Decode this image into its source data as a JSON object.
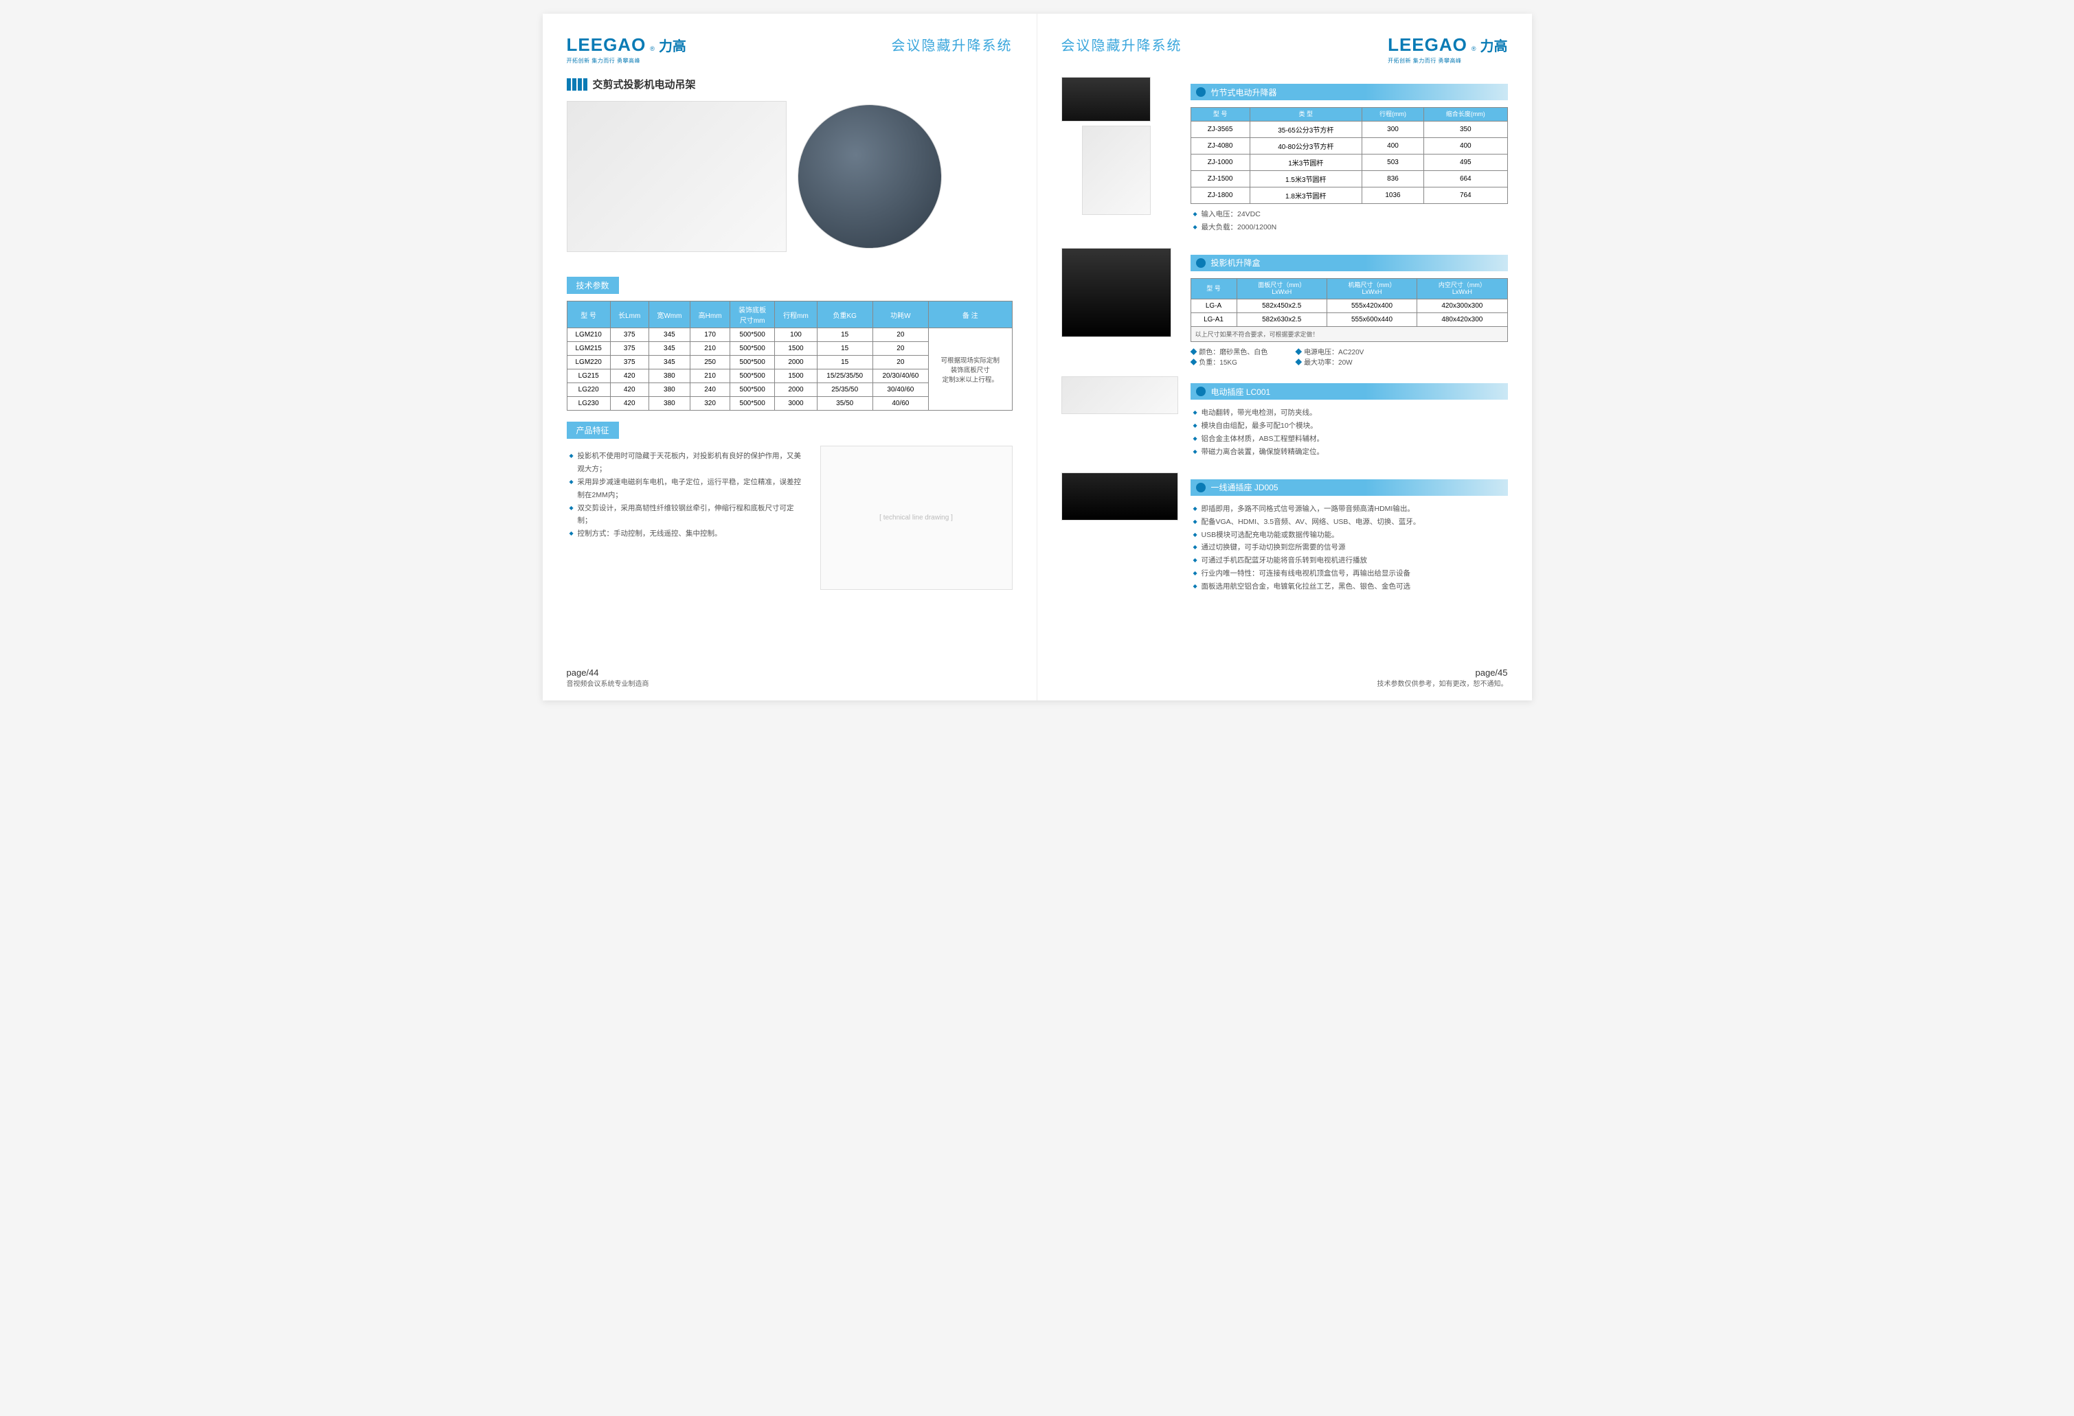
{
  "brand": {
    "en": "LEEGAO",
    "cn": "力高",
    "r": "®",
    "tagline": "开拓创新 集力而行 勇攀高峰"
  },
  "left": {
    "title": "会议隐藏升降系统",
    "section1": "交剪式投影机电动吊架",
    "specs_header": "技术参数",
    "table": {
      "columns": [
        "型 号",
        "长Lmm",
        "宽Wmm",
        "高Hmm",
        "装饰底板\n尺寸mm",
        "行程mm",
        "负重KG",
        "功耗W",
        "备  注"
      ],
      "rows": [
        [
          "LGM210",
          "375",
          "345",
          "170",
          "500*500",
          "100",
          "15",
          "20"
        ],
        [
          "LGM215",
          "375",
          "345",
          "210",
          "500*500",
          "1500",
          "15",
          "20"
        ],
        [
          "LGM220",
          "375",
          "345",
          "250",
          "500*500",
          "2000",
          "15",
          "20"
        ],
        [
          "LG215",
          "420",
          "380",
          "210",
          "500*500",
          "1500",
          "15/25/35/50",
          "20/30/40/60"
        ],
        [
          "LG220",
          "420",
          "380",
          "240",
          "500*500",
          "2000",
          "25/35/50",
          "30/40/60"
        ],
        [
          "LG230",
          "420",
          "380",
          "320",
          "500*500",
          "3000",
          "35/50",
          "40/60"
        ]
      ],
      "note": "可根据现场实际定制\n装饰底板尺寸\n定制3米以上行程。"
    },
    "features_header": "产品特征",
    "features": [
      "投影机不使用时可隐藏于天花板内，对投影机有良好的保护作用，又美观大方；",
      "采用异步减速电磁刹车电机，电子定位，运行平稳，定位精准，误差控制在2MM内；",
      "双交剪设计，采用高韧性纤维铰钢丝牵引，伸缩行程和底板尺寸可定制；",
      "控制方式：手动控制，无线遥控、集中控制。"
    ],
    "page": "page/44",
    "footer_sub": "音视频会议系统专业制造商"
  },
  "right": {
    "title": "会议隐藏升降系统",
    "s1": {
      "header": "竹节式电动升降器",
      "table": {
        "columns": [
          "型 号",
          "类  型",
          "行程(mm)",
          "缩合长度(mm)"
        ],
        "rows": [
          [
            "ZJ-3565",
            "35-65公分3节方杆",
            "300",
            "350"
          ],
          [
            "ZJ-4080",
            "40-80公分3节方杆",
            "400",
            "400"
          ],
          [
            "ZJ-1000",
            "1米3节圆杆",
            "503",
            "495"
          ],
          [
            "ZJ-1500",
            "1.5米3节圆杆",
            "836",
            "664"
          ],
          [
            "ZJ-1800",
            "1.8米3节圆杆",
            "1036",
            "764"
          ]
        ]
      },
      "specs": [
        "输入电压：24VDC",
        "最大负载：2000/1200N"
      ]
    },
    "s2": {
      "header": "投影机升降盒",
      "table": {
        "columns": [
          "型 号",
          "面板尺寸（mm）\nLxWxH",
          "机箱尺寸（mm）\nLxWxH",
          "内空尺寸（mm）\nLxWxH"
        ],
        "rows": [
          [
            "LG-A",
            "582x450x2.5",
            "555x420x400",
            "420x300x300"
          ],
          [
            "LG-A1",
            "582x630x2.5",
            "555x600x440",
            "480x420x300"
          ]
        ],
        "note": "以上尺寸如果不符合要求，可根据要求定做！"
      },
      "specs_left": [
        "颜色：磨砂黑色、白色",
        "负重：15KG"
      ],
      "specs_right": [
        "电源电压：AC220V",
        "最大功率：20W"
      ]
    },
    "s3": {
      "header": "电动插座  LC001",
      "bullets": [
        "电动翻转，带光电检测，可防夹线。",
        "模块自由组配，最多可配10个模块。",
        "铝合金主体材质，ABS工程塑料辅材。",
        "带磁力离合装置，确保旋转精确定位。"
      ]
    },
    "s4": {
      "header": "一线通插座  JD005",
      "bullets": [
        "即插即用，多路不同格式信号源输入，一路带音频高清HDMI输出。",
        "配备VGA、HDMI、3.5音频、AV、网络、USB、电源、切换、蓝牙。",
        "USB模块可选配充电功能或数据传输功能。",
        "通过切换键，可手动切换到您所需要的信号源",
        "可通过手机匹配蓝牙功能将音乐转到电视机进行播放",
        "行业内唯一特性：可连接有线电视机顶盒信号，再输出给显示设备",
        "面板选用航空铝合金，电镀氧化拉丝工艺，黑色、银色、金色可选"
      ]
    },
    "page": "page/45",
    "footer_sub": "技术参数仅供参考，如有更改，恕不通知。"
  }
}
